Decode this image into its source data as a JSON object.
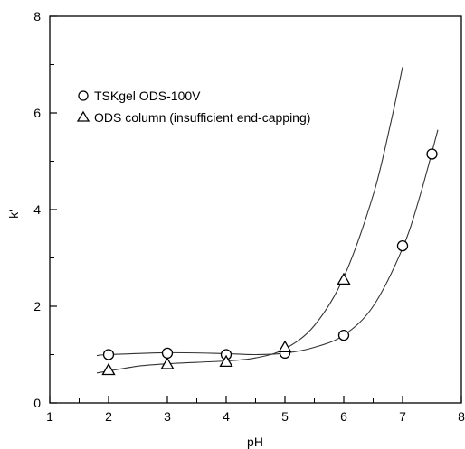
{
  "chart_data": {
    "type": "scatter",
    "title": "",
    "xlabel": "pH",
    "ylabel": "k'",
    "xlim": [
      1,
      8
    ],
    "ylim": [
      0,
      8
    ],
    "xticks": [
      "1",
      "2",
      "3",
      "4",
      "5",
      "6",
      "7",
      "8"
    ],
    "yticks": [
      "0",
      "2",
      "4",
      "6",
      "8"
    ],
    "grid": false,
    "legend_position": "top-left",
    "series": [
      {
        "name": "TSKgel ODS-100V",
        "marker": "circle",
        "x": [
          2,
          3,
          4,
          5,
          6,
          7,
          7.5
        ],
        "y": [
          1.0,
          1.03,
          1.0,
          1.03,
          1.4,
          3.25,
          5.15
        ],
        "fit_curve": {
          "x": [
            1.8,
            2,
            3,
            4,
            4.5,
            5,
            5.5,
            6,
            6.5,
            7,
            7.3,
            7.6
          ],
          "y": [
            0.98,
            1.0,
            1.04,
            1.02,
            1.0,
            1.03,
            1.15,
            1.4,
            2.0,
            3.2,
            4.3,
            5.65
          ]
        }
      },
      {
        "name": "ODS column (insufficient end-capping)",
        "marker": "triangle",
        "x": [
          2,
          3,
          4,
          5,
          6
        ],
        "y": [
          0.68,
          0.8,
          0.85,
          1.15,
          2.55
        ],
        "fit_curve": {
          "x": [
            1.8,
            2,
            2.5,
            3,
            3.5,
            4,
            4.5,
            5,
            5.5,
            6,
            6.5,
            6.8,
            7.0
          ],
          "y": [
            0.62,
            0.66,
            0.76,
            0.81,
            0.84,
            0.87,
            0.93,
            1.12,
            1.6,
            2.6,
            4.3,
            5.8,
            6.95
          ]
        }
      }
    ]
  }
}
